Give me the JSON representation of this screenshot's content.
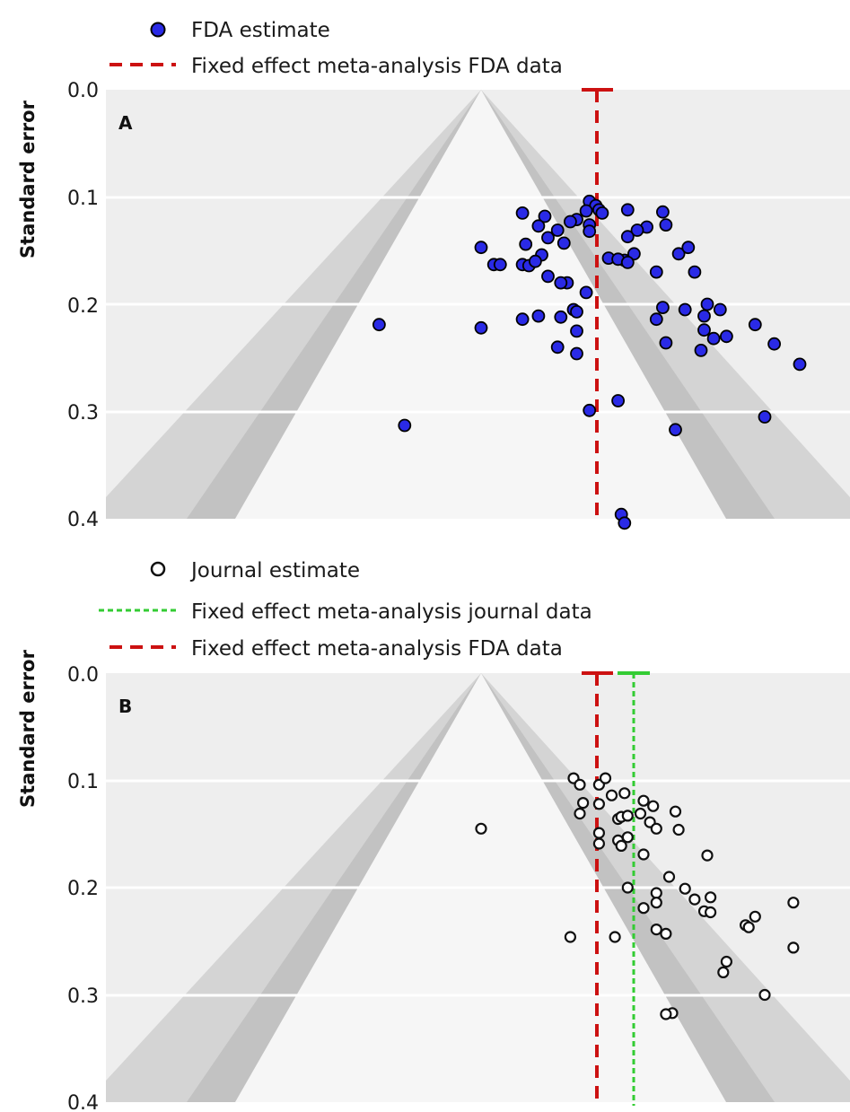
{
  "chart_data": [
    {
      "type": "scatter",
      "panel_label": "A",
      "ylabel": "Standard error",
      "ylim": [
        0.0,
        0.4
      ],
      "y_inverted": true,
      "yticks": [
        "0.0",
        "0.1",
        "0.2",
        "0.3",
        "0.4"
      ],
      "legend": [
        {
          "label": "FDA estimate",
          "marker": "filled-circle",
          "color": "#2222dd"
        },
        {
          "label": "Fixed effect meta-analysis FDA data",
          "line": "dashed",
          "color": "#cc1111"
        }
      ],
      "funnel_apex_x": 0.0,
      "reference_lines": [
        {
          "name": "Fixed effect meta-analysis FDA data",
          "x": 0.37,
          "ci": [
            0.33,
            0.41
          ],
          "color": "#cc1111",
          "style": "dashed"
        }
      ],
      "series": [
        {
          "name": "FDA estimate",
          "points": [
            [
              0.34,
              0.104
            ],
            [
              0.36,
              0.108
            ],
            [
              0.33,
              0.113
            ],
            [
              0.37,
              0.112
            ],
            [
              0.38,
              0.115
            ],
            [
              0.46,
              0.112
            ],
            [
              0.57,
              0.114
            ],
            [
              0.13,
              0.115
            ],
            [
              0.2,
              0.118
            ],
            [
              0.3,
              0.121
            ],
            [
              0.28,
              0.123
            ],
            [
              0.34,
              0.126
            ],
            [
              0.18,
              0.127
            ],
            [
              0.52,
              0.128
            ],
            [
              0.58,
              0.126
            ],
            [
              0.49,
              0.131
            ],
            [
              0.46,
              0.137
            ],
            [
              0.24,
              0.131
            ],
            [
              0.21,
              0.138
            ],
            [
              0.34,
              0.132
            ],
            [
              0.45,
              0.159
            ],
            [
              0.48,
              0.153
            ],
            [
              0.62,
              0.153
            ],
            [
              0.65,
              0.147
            ],
            [
              0.0,
              0.147
            ],
            [
              0.14,
              0.144
            ],
            [
              0.26,
              0.143
            ],
            [
              0.19,
              0.154
            ],
            [
              0.04,
              0.163
            ],
            [
              0.06,
              0.163
            ],
            [
              0.13,
              0.163
            ],
            [
              0.15,
              0.164
            ],
            [
              0.17,
              0.16
            ],
            [
              0.4,
              0.157
            ],
            [
              0.43,
              0.158
            ],
            [
              0.46,
              0.161
            ],
            [
              0.55,
              0.17
            ],
            [
              0.67,
              0.17
            ],
            [
              0.21,
              0.174
            ],
            [
              0.27,
              0.18
            ],
            [
              0.25,
              0.18
            ],
            [
              0.33,
              0.189
            ],
            [
              0.29,
              0.205
            ],
            [
              0.3,
              0.207
            ],
            [
              0.18,
              0.211
            ],
            [
              0.13,
              0.214
            ],
            [
              0.25,
              0.212
            ],
            [
              0.57,
              0.203
            ],
            [
              0.64,
              0.205
            ],
            [
              0.71,
              0.2
            ],
            [
              0.75,
              0.205
            ],
            [
              0.7,
              0.211
            ],
            [
              0.55,
              0.214
            ],
            [
              0.0,
              0.222
            ],
            [
              -0.32,
              0.219
            ],
            [
              0.3,
              0.225
            ],
            [
              0.7,
              0.224
            ],
            [
              0.86,
              0.219
            ],
            [
              0.73,
              0.232
            ],
            [
              0.77,
              0.23
            ],
            [
              0.58,
              0.236
            ],
            [
              0.24,
              0.24
            ],
            [
              0.3,
              0.246
            ],
            [
              0.69,
              0.243
            ],
            [
              0.92,
              0.237
            ],
            [
              1.0,
              0.256
            ],
            [
              0.43,
              0.29
            ],
            [
              0.34,
              0.299
            ],
            [
              0.89,
              0.305
            ],
            [
              0.61,
              0.317
            ],
            [
              -0.24,
              0.313
            ],
            [
              0.44,
              0.396
            ],
            [
              0.45,
              0.404
            ]
          ]
        }
      ]
    },
    {
      "type": "scatter",
      "panel_label": "B",
      "ylabel": "Standard error",
      "ylim": [
        0.0,
        0.4
      ],
      "y_inverted": true,
      "yticks": [
        "0.0",
        "0.1",
        "0.2",
        "0.3",
        "0.4"
      ],
      "legend": [
        {
          "label": "Journal estimate",
          "marker": "open-circle",
          "color": "#111111"
        },
        {
          "label": "Fixed effect meta-analysis journal data",
          "line": "dashed",
          "color": "#33cc33"
        },
        {
          "label": "Fixed effect meta-analysis FDA data",
          "line": "dashed",
          "color": "#cc1111"
        }
      ],
      "funnel_apex_x": 0.0,
      "reference_lines": [
        {
          "name": "Fixed effect meta-analysis FDA data",
          "x": 0.37,
          "ci": [
            0.33,
            0.41
          ],
          "color": "#cc1111",
          "style": "dashed"
        },
        {
          "name": "Fixed effect meta-analysis journal data",
          "x": 0.48,
          "ci": [
            0.44,
            0.52
          ],
          "color": "#33cc33",
          "style": "dashed"
        }
      ],
      "series": [
        {
          "name": "Journal estimate",
          "points": [
            [
              0.29,
              0.098
            ],
            [
              0.31,
              0.104
            ],
            [
              0.37,
              0.104
            ],
            [
              0.39,
              0.098
            ],
            [
              0.41,
              0.114
            ],
            [
              0.45,
              0.112
            ],
            [
              0.51,
              0.119
            ],
            [
              0.54,
              0.124
            ],
            [
              0.32,
              0.121
            ],
            [
              0.37,
              0.122
            ],
            [
              0.31,
              0.131
            ],
            [
              0.43,
              0.136
            ],
            [
              0.44,
              0.134
            ],
            [
              0.46,
              0.133
            ],
            [
              0.5,
              0.131
            ],
            [
              0.53,
              0.139
            ],
            [
              0.61,
              0.129
            ],
            [
              0.0,
              0.145
            ],
            [
              0.37,
              0.149
            ],
            [
              0.37,
              0.159
            ],
            [
              0.43,
              0.156
            ],
            [
              0.44,
              0.161
            ],
            [
              0.46,
              0.153
            ],
            [
              0.55,
              0.145
            ],
            [
              0.62,
              0.146
            ],
            [
              0.71,
              0.17
            ],
            [
              0.51,
              0.169
            ],
            [
              0.59,
              0.19
            ],
            [
              0.46,
              0.2
            ],
            [
              0.55,
              0.205
            ],
            [
              0.64,
              0.201
            ],
            [
              0.67,
              0.211
            ],
            [
              0.51,
              0.219
            ],
            [
              0.55,
              0.214
            ],
            [
              0.72,
              0.209
            ],
            [
              0.7,
              0.222
            ],
            [
              0.72,
              0.223
            ],
            [
              0.28,
              0.246
            ],
            [
              0.42,
              0.246
            ],
            [
              0.58,
              0.243
            ],
            [
              0.55,
              0.239
            ],
            [
              0.86,
              0.227
            ],
            [
              0.83,
              0.235
            ],
            [
              0.84,
              0.237
            ],
            [
              0.98,
              0.214
            ],
            [
              0.98,
              0.256
            ],
            [
              0.77,
              0.269
            ],
            [
              0.76,
              0.279
            ],
            [
              0.89,
              0.3
            ],
            [
              0.6,
              0.317
            ],
            [
              0.58,
              0.318
            ]
          ]
        }
      ]
    }
  ]
}
